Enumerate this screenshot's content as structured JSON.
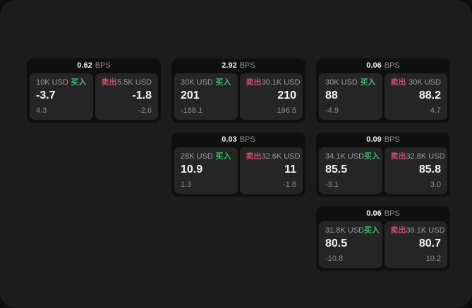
{
  "labels": {
    "bps": "BPS",
    "buy": "买入",
    "sell": "卖出"
  },
  "colors": {
    "page_bg": "#1c1c1c",
    "card_bg": "#0f0f0f",
    "panel_bg": "#252525",
    "buy_green": "#3dbb72",
    "sell_red": "#c94f6c"
  },
  "cards": [
    {
      "bps": "0.62",
      "buy": {
        "size": "10K USD",
        "price": "-3.7",
        "change": "4.3"
      },
      "sell": {
        "size": "5.5K USD",
        "price": "-1.8",
        "change": "-2.6"
      }
    },
    {
      "bps": "2.92",
      "buy": {
        "size": "30K USD",
        "price": "201",
        "change": "-188.1"
      },
      "sell": {
        "size": "30.1K USD",
        "price": "210",
        "change": "196.5"
      }
    },
    {
      "bps": "0.06",
      "buy": {
        "size": "30K USD",
        "price": "88",
        "change": "-4.9"
      },
      "sell": {
        "size": "30K USD",
        "price": "88.2",
        "change": "4.7"
      }
    },
    {
      "bps": "0.03",
      "buy": {
        "size": "28K USD",
        "price": "10.9",
        "change": "1.3"
      },
      "sell": {
        "size": "32.6K USD",
        "price": "11",
        "change": "-1.8"
      }
    },
    {
      "bps": "0.09",
      "buy": {
        "size": "34.1K USD",
        "price": "85.5",
        "change": "-3.1"
      },
      "sell": {
        "size": "32.8K USD",
        "price": "85.8",
        "change": "3.0"
      }
    },
    {
      "bps": "0.06",
      "buy": {
        "size": "31.8K USD",
        "price": "80.5",
        "change": "-10.8"
      },
      "sell": {
        "size": "39.1K USD",
        "price": "80.7",
        "change": "10.2"
      }
    }
  ]
}
